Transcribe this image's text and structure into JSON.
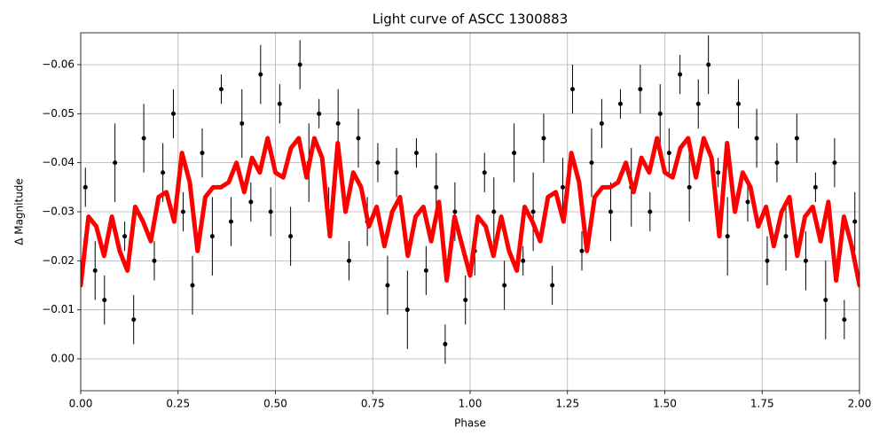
{
  "chart_data": {
    "type": "scatter",
    "title": "Light curve of ASCC 1300883",
    "xlabel": "Phase",
    "ylabel": "Δ Magnitude",
    "xlim": [
      0,
      2
    ],
    "ylim": [
      0.0065,
      -0.0665
    ],
    "grid": true,
    "xticks": [
      {
        "value": 0,
        "label": "0.00"
      },
      {
        "value": 0.25,
        "label": "0.25"
      },
      {
        "value": 0.5,
        "label": "0.50"
      },
      {
        "value": 0.75,
        "label": "0.75"
      },
      {
        "value": 1,
        "label": "1.00"
      },
      {
        "value": 1.25,
        "label": "1.25"
      },
      {
        "value": 1.5,
        "label": "1.50"
      },
      {
        "value": 1.75,
        "label": "1.75"
      },
      {
        "value": 2,
        "label": "2.00"
      }
    ],
    "yticks": [
      {
        "value": -0.06,
        "label": "−0.06"
      },
      {
        "value": -0.05,
        "label": "−0.05"
      },
      {
        "value": -0.04,
        "label": "−0.04"
      },
      {
        "value": -0.03,
        "label": "−0.03"
      },
      {
        "value": -0.02,
        "label": "−0.02"
      },
      {
        "value": -0.01,
        "label": "−0.01"
      },
      {
        "value": 0,
        "label": "0.00"
      }
    ],
    "series": [
      {
        "type": "errorbar",
        "color": "#000000",
        "x": [
          0.012,
          0.037,
          0.061,
          0.088,
          0.113,
          0.136,
          0.162,
          0.189,
          0.211,
          0.238,
          0.263,
          0.287,
          0.312,
          0.338,
          0.361,
          0.386,
          0.414,
          0.437,
          0.462,
          0.488,
          0.511,
          0.539,
          0.563,
          0.586,
          0.612,
          0.637,
          0.661,
          0.689,
          0.713,
          0.736,
          0.763,
          0.788,
          0.811,
          0.839,
          0.862,
          0.887,
          0.913,
          0.936,
          0.961,
          0.988,
          1.012,
          1.037,
          1.061,
          1.088,
          1.113,
          1.136,
          1.162,
          1.189,
          1.211,
          1.238,
          1.263,
          1.287,
          1.312,
          1.338,
          1.361,
          1.386,
          1.414,
          1.437,
          1.462,
          1.488,
          1.511,
          1.539,
          1.563,
          1.586,
          1.612,
          1.637,
          1.661,
          1.689,
          1.713,
          1.736,
          1.763,
          1.788,
          1.811,
          1.839,
          1.862,
          1.887,
          1.913,
          1.936,
          1.961,
          1.988
        ],
        "values": [
          -0.035,
          -0.018,
          -0.012,
          -0.04,
          -0.025,
          -0.008,
          -0.045,
          -0.02,
          -0.038,
          -0.05,
          -0.03,
          -0.015,
          -0.042,
          -0.025,
          -0.055,
          -0.028,
          -0.048,
          -0.032,
          -0.058,
          -0.03,
          -0.052,
          -0.025,
          -0.06,
          -0.04,
          -0.05,
          -0.03,
          -0.048,
          -0.02,
          -0.045,
          -0.028,
          -0.04,
          -0.015,
          -0.038,
          -0.01,
          -0.042,
          -0.018,
          -0.035,
          -0.003,
          -0.03,
          -0.012,
          -0.022,
          -0.038,
          -0.03,
          -0.015,
          -0.042,
          -0.02,
          -0.03,
          -0.045,
          -0.015,
          -0.035,
          -0.055,
          -0.022,
          -0.04,
          -0.048,
          -0.03,
          -0.052,
          -0.035,
          -0.055,
          -0.03,
          -0.05,
          -0.042,
          -0.058,
          -0.035,
          -0.052,
          -0.06,
          -0.038,
          -0.025,
          -0.052,
          -0.032,
          -0.045,
          -0.02,
          -0.04,
          -0.025,
          -0.045,
          -0.02,
          -0.035,
          -0.012,
          -0.04,
          -0.008,
          -0.028
        ],
        "errors": [
          0.004,
          0.006,
          0.005,
          0.008,
          0.003,
          0.005,
          0.007,
          0.004,
          0.006,
          0.005,
          0.004,
          0.006,
          0.005,
          0.008,
          0.003,
          0.005,
          0.007,
          0.004,
          0.006,
          0.005,
          0.004,
          0.006,
          0.005,
          0.008,
          0.003,
          0.005,
          0.007,
          0.004,
          0.006,
          0.005,
          0.004,
          0.006,
          0.005,
          0.008,
          0.003,
          0.005,
          0.007,
          0.004,
          0.006,
          0.005,
          0.005,
          0.004,
          0.007,
          0.005,
          0.006,
          0.003,
          0.008,
          0.005,
          0.004,
          0.006,
          0.005,
          0.004,
          0.007,
          0.005,
          0.006,
          0.003,
          0.008,
          0.005,
          0.004,
          0.006,
          0.005,
          0.004,
          0.007,
          0.005,
          0.006,
          0.003,
          0.008,
          0.005,
          0.004,
          0.006,
          0.005,
          0.004,
          0.007,
          0.005,
          0.006,
          0.003,
          0.008,
          0.005,
          0.004,
          0.006
        ]
      },
      {
        "type": "line",
        "color": "#ff0000",
        "x": [
          0,
          0.02,
          0.04,
          0.06,
          0.08,
          0.1,
          0.12,
          0.14,
          0.16,
          0.18,
          0.2,
          0.22,
          0.24,
          0.26,
          0.28,
          0.3,
          0.32,
          0.34,
          0.36,
          0.38,
          0.4,
          0.42,
          0.44,
          0.46,
          0.48,
          0.5,
          0.52,
          0.54,
          0.56,
          0.58,
          0.6,
          0.62,
          0.64,
          0.66,
          0.68,
          0.7,
          0.72,
          0.74,
          0.76,
          0.78,
          0.8,
          0.82,
          0.84,
          0.86,
          0.88,
          0.9,
          0.92,
          0.94,
          0.96,
          0.98,
          1,
          1.02,
          1.04,
          1.06,
          1.08,
          1.1,
          1.12,
          1.14,
          1.16,
          1.18,
          1.2,
          1.22,
          1.24,
          1.26,
          1.28,
          1.3,
          1.32,
          1.34,
          1.36,
          1.38,
          1.4,
          1.42,
          1.44,
          1.46,
          1.48,
          1.5,
          1.52,
          1.54,
          1.56,
          1.58,
          1.6,
          1.62,
          1.64,
          1.66,
          1.68,
          1.7,
          1.72,
          1.74,
          1.76,
          1.78,
          1.8,
          1.82,
          1.84,
          1.86,
          1.88,
          1.9,
          1.92,
          1.94,
          1.96,
          1.98,
          2
        ],
        "values": [
          -0.015,
          -0.029,
          -0.027,
          -0.021,
          -0.029,
          -0.022,
          -0.018,
          -0.031,
          -0.028,
          -0.024,
          -0.033,
          -0.034,
          -0.028,
          -0.042,
          -0.036,
          -0.022,
          -0.033,
          -0.035,
          -0.035,
          -0.036,
          -0.04,
          -0.034,
          -0.041,
          -0.038,
          -0.045,
          -0.038,
          -0.037,
          -0.043,
          -0.045,
          -0.037,
          -0.045,
          -0.041,
          -0.025,
          -0.044,
          -0.03,
          -0.038,
          -0.035,
          -0.027,
          -0.031,
          -0.023,
          -0.03,
          -0.033,
          -0.021,
          -0.029,
          -0.031,
          -0.024,
          -0.032,
          -0.016,
          -0.029,
          -0.023,
          -0.017,
          -0.029,
          -0.027,
          -0.021,
          -0.029,
          -0.022,
          -0.018,
          -0.031,
          -0.028,
          -0.024,
          -0.033,
          -0.034,
          -0.028,
          -0.042,
          -0.036,
          -0.022,
          -0.033,
          -0.035,
          -0.035,
          -0.036,
          -0.04,
          -0.034,
          -0.041,
          -0.038,
          -0.045,
          -0.038,
          -0.037,
          -0.043,
          -0.045,
          -0.037,
          -0.045,
          -0.041,
          -0.025,
          -0.044,
          -0.03,
          -0.038,
          -0.035,
          -0.027,
          -0.031,
          -0.023,
          -0.03,
          -0.033,
          -0.021,
          -0.029,
          -0.031,
          -0.024,
          -0.032,
          -0.016,
          -0.029,
          -0.023,
          -0.015
        ]
      }
    ]
  }
}
